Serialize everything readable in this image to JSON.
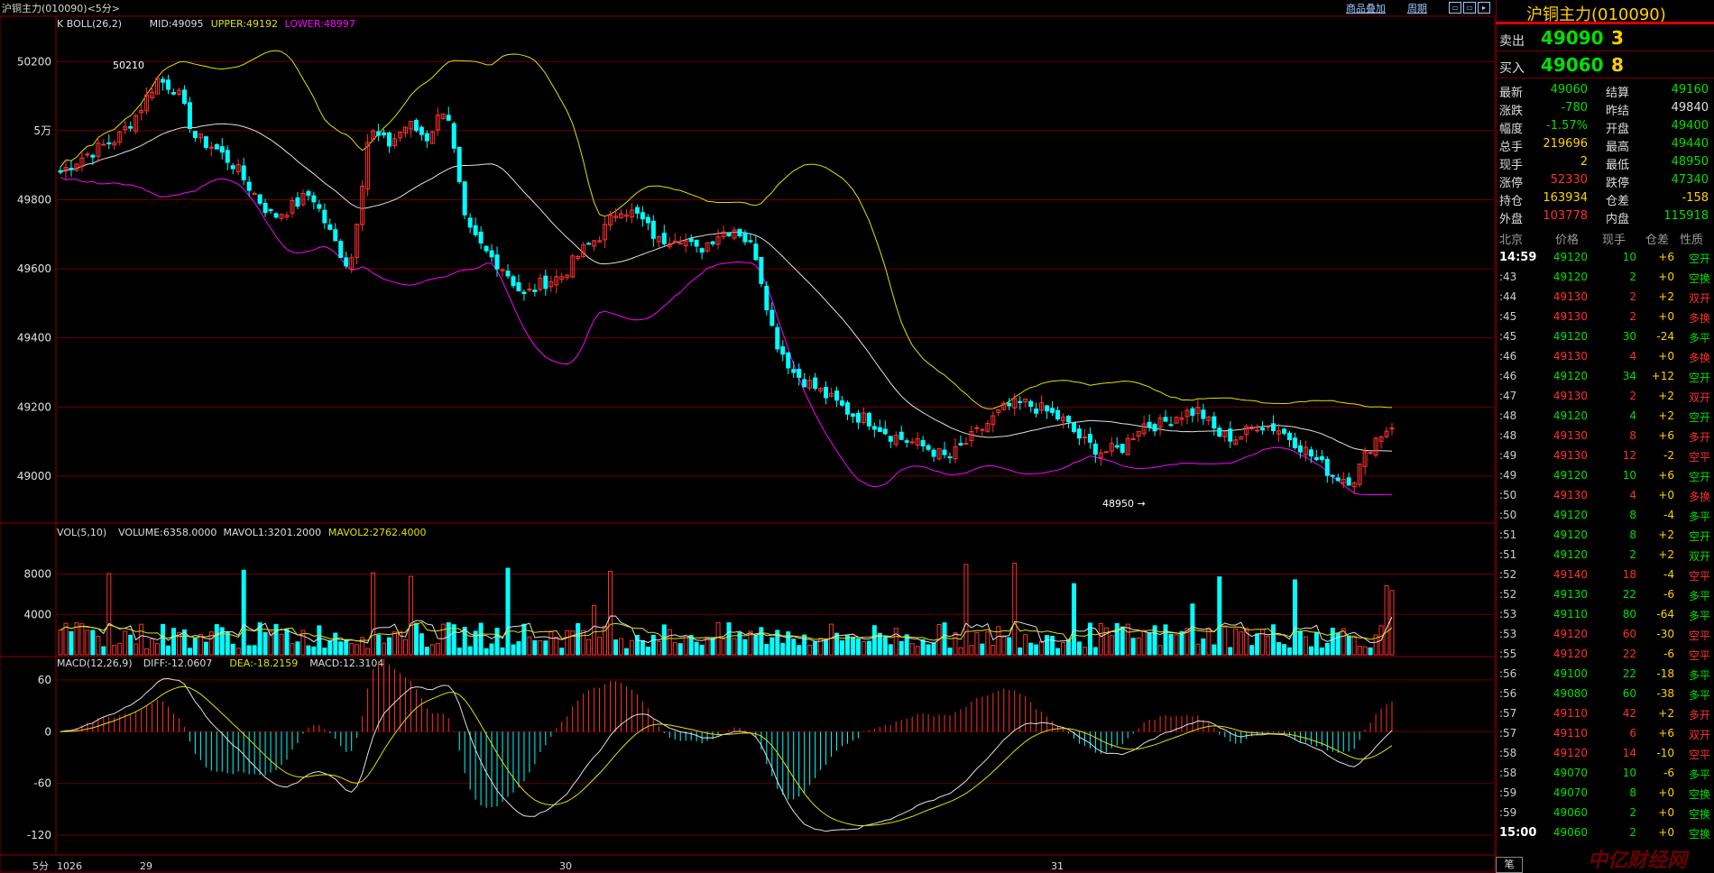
{
  "window": {
    "title": "沪铜主力(010090)<5分>"
  },
  "toolbar": {
    "overlay_label": "商品叠加",
    "period_label": "周期"
  },
  "indicators": {
    "boll_header": "K   BOLL(26,2)",
    "boll_mid": "MID:49095",
    "boll_upper": "UPPER:49192",
    "boll_lower": "LOWER:48997",
    "vol_header": "VOL(5,10)",
    "vol_volume": "VOLUME:6358.0000",
    "vol_mavol1": "MAVOL1:3201.2000",
    "vol_mavol2": "MAVOL2:2762.4000",
    "macd_header": "MACD(12,26,9)",
    "macd_diff": "DIFF:-12.0607",
    "macd_dea": "DEA:-18.2159",
    "macd_macd": "MACD:12.3104"
  },
  "price_axis": {
    "labels": [
      "50200",
      "5万",
      "49800",
      "49600",
      "49400",
      "49200",
      "49000"
    ],
    "values": [
      50200,
      50000,
      49800,
      49600,
      49400,
      49200,
      49000
    ],
    "ylim": [
      48890,
      50300
    ]
  },
  "vol_axis": {
    "labels": [
      "8000",
      "4000"
    ],
    "values": [
      8000,
      4000
    ],
    "ylim": [
      0,
      11000
    ]
  },
  "macd_axis": {
    "labels": [
      "60",
      "0",
      "-60",
      "-120"
    ],
    "values": [
      60,
      0,
      -60,
      -120
    ],
    "ylim": [
      -145,
      85
    ]
  },
  "date_axis": {
    "period_label": "5分",
    "labels": [
      "1026",
      "29",
      "30",
      "31"
    ]
  },
  "annotations": {
    "high_label": "50210",
    "low_label": "48950 →"
  },
  "colors": {
    "up": "#ff3030",
    "down": "#00ffff",
    "mid": "#e0e0e0",
    "upper": "#e0e000",
    "lower": "#ff00ff",
    "grid": "#6a0000",
    "diff": "#e0e0e0",
    "dea": "#e0e000"
  },
  "chart_data": {
    "type": "candlestick",
    "close": [
      49880,
      49920,
      49950,
      49980,
      50050,
      50150,
      50120,
      49980,
      49950,
      49900,
      49820,
      49750,
      49780,
      49820,
      49700,
      49600,
      50000,
      49960,
      50020,
      49980,
      50080,
      49720,
      49650,
      49600,
      49520,
      49560,
      49580,
      49650,
      49700,
      49780,
      49750,
      49680,
      49700,
      49650,
      49700,
      49720,
      49650,
      49400,
      49300,
      49260,
      49220,
      49180,
      49160,
      49120,
      49100,
      49080,
      49050,
      49100,
      49150,
      49200,
      49210,
      49190,
      49160,
      49100,
      49070,
      49080,
      49150,
      49150,
      49180,
      49190,
      49120,
      49110,
      49150,
      49140,
      49100,
      49050,
      49000,
      48990,
      49100,
      49150
    ],
    "candle_count": 248
  },
  "panel": {
    "name": "沪铜主力(010090)",
    "sell_label": "卖出",
    "sell_price": "49090",
    "sell_qty": "3",
    "buy_label": "买入",
    "buy_price": "49060",
    "buy_qty": "8",
    "quotes": [
      {
        "l": "最新",
        "v": "49060",
        "vc": "#00e000",
        "l2": "结算",
        "v2": "49160",
        "vc2": "#00e000"
      },
      {
        "l": "涨跌",
        "v": "-780",
        "vc": "#00e000",
        "l2": "昨结",
        "v2": "49840",
        "vc2": "#e0e0e0"
      },
      {
        "l": "幅度",
        "v": "-1.57%",
        "vc": "#00e000",
        "l2": "开盘",
        "v2": "49400",
        "vc2": "#00e000"
      },
      {
        "l": "总手",
        "v": "219696",
        "vc": "#ffd000",
        "l2": "最高",
        "v2": "49440",
        "vc2": "#00e000"
      },
      {
        "l": "现手",
        "v": "2",
        "vc": "#ffd000",
        "l2": "最低",
        "v2": "48950",
        "vc2": "#00e000"
      },
      {
        "l": "涨停",
        "v": "52330",
        "vc": "#ff3030",
        "l2": "跌停",
        "v2": "47340",
        "vc2": "#00e000"
      },
      {
        "l": "持仓",
        "v": "163934",
        "vc": "#ffd000",
        "l2": "仓差",
        "v2": "-158",
        "vc2": "#ffd000"
      },
      {
        "l": "外盘",
        "v": "103778",
        "vc": "#ff3030",
        "l2": "内盘",
        "v2": "115918",
        "vc2": "#00e000"
      }
    ],
    "ticks_header": {
      "time": "北京",
      "price": "价格",
      "qty": "现手",
      "oi": "仓差",
      "nature": "性质"
    },
    "ticks": [
      {
        "t": "14:59",
        "p": "49120",
        "pc": "#00e000",
        "q": "10",
        "qc": "#00e000",
        "o": "+6",
        "oc": "#ffd000",
        "n": "空开",
        "nc": "#00e000"
      },
      {
        "t": ":43",
        "p": "49120",
        "pc": "#00e000",
        "q": "2",
        "qc": "#00e000",
        "o": "+0",
        "oc": "#ffd000",
        "n": "空换",
        "nc": "#00e000"
      },
      {
        "t": ":44",
        "p": "49130",
        "pc": "#ff3030",
        "q": "2",
        "qc": "#ff3030",
        "o": "+2",
        "oc": "#ffd000",
        "n": "双开",
        "nc": "#ff3030"
      },
      {
        "t": ":45",
        "p": "49130",
        "pc": "#ff3030",
        "q": "2",
        "qc": "#ff3030",
        "o": "+0",
        "oc": "#ffd000",
        "n": "多换",
        "nc": "#ff3030"
      },
      {
        "t": ":45",
        "p": "49120",
        "pc": "#00e000",
        "q": "30",
        "qc": "#00e000",
        "o": "-24",
        "oc": "#ffd000",
        "n": "多平",
        "nc": "#00e000"
      },
      {
        "t": ":46",
        "p": "49130",
        "pc": "#ff3030",
        "q": "4",
        "qc": "#ff3030",
        "o": "+0",
        "oc": "#ffd000",
        "n": "多换",
        "nc": "#ff3030"
      },
      {
        "t": ":46",
        "p": "49120",
        "pc": "#00e000",
        "q": "34",
        "qc": "#00e000",
        "o": "+12",
        "oc": "#ffd000",
        "n": "空开",
        "nc": "#00e000"
      },
      {
        "t": ":47",
        "p": "49130",
        "pc": "#ff3030",
        "q": "2",
        "qc": "#ff3030",
        "o": "+2",
        "oc": "#ffd000",
        "n": "双开",
        "nc": "#ff3030"
      },
      {
        "t": ":48",
        "p": "49120",
        "pc": "#00e000",
        "q": "4",
        "qc": "#00e000",
        "o": "+2",
        "oc": "#ffd000",
        "n": "空开",
        "nc": "#00e000"
      },
      {
        "t": ":48",
        "p": "49130",
        "pc": "#ff3030",
        "q": "8",
        "qc": "#ff3030",
        "o": "+6",
        "oc": "#ffd000",
        "n": "多开",
        "nc": "#ff3030"
      },
      {
        "t": ":49",
        "p": "49130",
        "pc": "#ff3030",
        "q": "12",
        "qc": "#ff3030",
        "o": "-2",
        "oc": "#ffd000",
        "n": "空平",
        "nc": "#ff3030"
      },
      {
        "t": ":49",
        "p": "49120",
        "pc": "#00e000",
        "q": "10",
        "qc": "#00e000",
        "o": "+6",
        "oc": "#ffd000",
        "n": "空开",
        "nc": "#00e000"
      },
      {
        "t": ":50",
        "p": "49130",
        "pc": "#ff3030",
        "q": "4",
        "qc": "#ff3030",
        "o": "+0",
        "oc": "#ffd000",
        "n": "多换",
        "nc": "#ff3030"
      },
      {
        "t": ":50",
        "p": "49120",
        "pc": "#00e000",
        "q": "8",
        "qc": "#00e000",
        "o": "-4",
        "oc": "#ffd000",
        "n": "多平",
        "nc": "#00e000"
      },
      {
        "t": ":51",
        "p": "49120",
        "pc": "#00e000",
        "q": "8",
        "qc": "#00e000",
        "o": "+2",
        "oc": "#ffd000",
        "n": "空开",
        "nc": "#00e000"
      },
      {
        "t": ":51",
        "p": "49120",
        "pc": "#00e000",
        "q": "2",
        "qc": "#00e000",
        "o": "+2",
        "oc": "#ffd000",
        "n": "双开",
        "nc": "#00e000"
      },
      {
        "t": ":52",
        "p": "49140",
        "pc": "#ff3030",
        "q": "18",
        "qc": "#ff3030",
        "o": "-4",
        "oc": "#ffd000",
        "n": "空平",
        "nc": "#ff3030"
      },
      {
        "t": ":52",
        "p": "49130",
        "pc": "#00e000",
        "q": "22",
        "qc": "#00e000",
        "o": "-6",
        "oc": "#ffd000",
        "n": "多平",
        "nc": "#00e000"
      },
      {
        "t": ":53",
        "p": "49110",
        "pc": "#00e000",
        "q": "80",
        "qc": "#00e000",
        "o": "-64",
        "oc": "#ffd000",
        "n": "多平",
        "nc": "#00e000"
      },
      {
        "t": ":53",
        "p": "49120",
        "pc": "#ff3030",
        "q": "60",
        "qc": "#ff3030",
        "o": "-30",
        "oc": "#ffd000",
        "n": "空平",
        "nc": "#ff3030"
      },
      {
        "t": ":55",
        "p": "49120",
        "pc": "#ff3030",
        "q": "22",
        "qc": "#ff3030",
        "o": "-6",
        "oc": "#ffd000",
        "n": "空平",
        "nc": "#ff3030"
      },
      {
        "t": ":56",
        "p": "49100",
        "pc": "#00e000",
        "q": "22",
        "qc": "#00e000",
        "o": "-18",
        "oc": "#ffd000",
        "n": "多平",
        "nc": "#00e000"
      },
      {
        "t": ":56",
        "p": "49080",
        "pc": "#00e000",
        "q": "60",
        "qc": "#00e000",
        "o": "-38",
        "oc": "#ffd000",
        "n": "多平",
        "nc": "#00e000"
      },
      {
        "t": ":57",
        "p": "49110",
        "pc": "#ff3030",
        "q": "42",
        "qc": "#ff3030",
        "o": "+2",
        "oc": "#ffd000",
        "n": "多开",
        "nc": "#ff3030"
      },
      {
        "t": ":57",
        "p": "49110",
        "pc": "#ff3030",
        "q": "6",
        "qc": "#ff3030",
        "o": "+6",
        "oc": "#ffd000",
        "n": "双开",
        "nc": "#ff3030"
      },
      {
        "t": ":58",
        "p": "49120",
        "pc": "#ff3030",
        "q": "14",
        "qc": "#ff3030",
        "o": "-10",
        "oc": "#ffd000",
        "n": "空平",
        "nc": "#ff3030"
      },
      {
        "t": ":58",
        "p": "49070",
        "pc": "#00e000",
        "q": "10",
        "qc": "#00e000",
        "o": "-6",
        "oc": "#ffd000",
        "n": "多平",
        "nc": "#00e000"
      },
      {
        "t": ":59",
        "p": "49070",
        "pc": "#00e000",
        "q": "8",
        "qc": "#00e000",
        "o": "+0",
        "oc": "#ffd000",
        "n": "空换",
        "nc": "#00e000"
      },
      {
        "t": ":59",
        "p": "49060",
        "pc": "#00e000",
        "q": "2",
        "qc": "#00e000",
        "o": "+0",
        "oc": "#ffd000",
        "n": "空换",
        "nc": "#00e000"
      },
      {
        "t": "15:00",
        "p": "49060",
        "pc": "#00e000",
        "q": "2",
        "qc": "#00e000",
        "o": "+0",
        "oc": "#ffd000",
        "n": "空换",
        "nc": "#00e000"
      }
    ],
    "bottom_tab": "笔",
    "watermark": "中亿财经网"
  }
}
